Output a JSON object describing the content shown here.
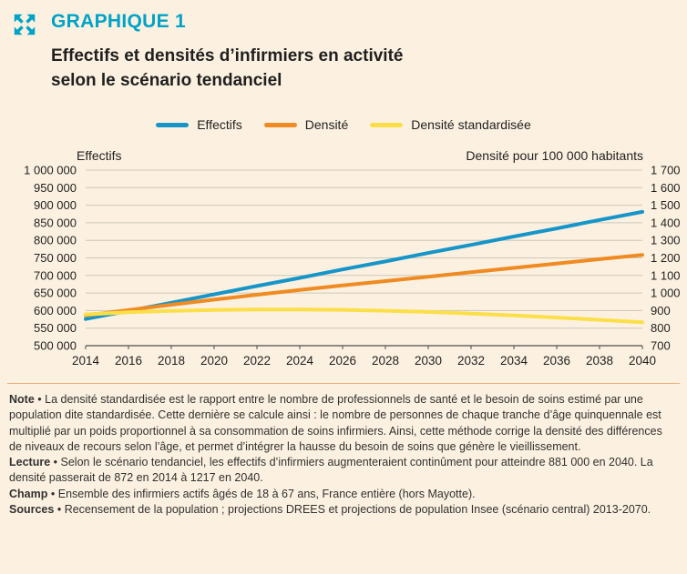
{
  "header": {
    "kicker": "GRAPHIQUE 1",
    "title_lines": [
      "Effectifs et densités d’infirmiers en activité",
      "selon le scénario tendanciel"
    ]
  },
  "colors": {
    "accent_teal": "#00a3c7",
    "background": "#fcf1e0",
    "grid": "#ccc7ba",
    "axis": "#4d4d4d",
    "separator": "#ecaf72",
    "text": "#2a2a2a"
  },
  "chart_data": {
    "type": "line",
    "title": "Effectifs et densités d’infirmiers en activité selon le scénario tendanciel",
    "x": [
      2014,
      2016,
      2018,
      2020,
      2022,
      2024,
      2026,
      2028,
      2030,
      2032,
      2034,
      2036,
      2038,
      2040
    ],
    "x_tick_labels": [
      "2014",
      "2016",
      "2018",
      "2020",
      "2022",
      "2024",
      "2026",
      "2028",
      "2030",
      "2032",
      "2034",
      "2036",
      "2038",
      "2040"
    ],
    "grid": true,
    "legend_position": "top",
    "left_axis": {
      "title": "Effectifs",
      "min": 500000,
      "max": 1000000,
      "step": 50000,
      "tick_labels": [
        "1 000 000",
        "950 000",
        "900 000",
        "850 000",
        "800 000",
        "750 000",
        "700 000",
        "650 000",
        "600 000",
        "550 000",
        "500 000"
      ]
    },
    "right_axis": {
      "title": "Densité pour 100 000 habitants",
      "min": 700,
      "max": 1700,
      "step": 100,
      "tick_labels": [
        "1 700",
        "1 600",
        "1 500",
        "1 400",
        "1 300",
        "1 200",
        "1 100",
        "1 000",
        "900",
        "800",
        "700"
      ]
    },
    "series": [
      {
        "name": "Effectifs",
        "key": "effectifs",
        "axis": "left",
        "color": "#1795c9",
        "values": [
          576000,
          599000,
          622000,
          646000,
          670000,
          693000,
          717000,
          740000,
          764000,
          787000,
          811000,
          834000,
          858000,
          881000
        ]
      },
      {
        "name": "Densité",
        "key": "densite",
        "axis": "right",
        "color": "#ef8b22",
        "values": [
          872,
          903,
          933,
          962,
          990,
          1017,
          1043,
          1068,
          1093,
          1118,
          1143,
          1168,
          1193,
          1217
        ]
      },
      {
        "name": "Densité standardisée",
        "key": "densite-standardisee",
        "axis": "right",
        "color": "#fbdf49",
        "values": [
          878,
          890,
          898,
          903,
          906,
          906,
          904,
          899,
          892,
          883,
          872,
          860,
          847,
          833
        ]
      }
    ]
  },
  "notes": {
    "bullet": "•",
    "items": [
      {
        "label": "Note",
        "text": "La densité standardisée est le rapport entre le nombre de professionnels de santé et le besoin de soins estimé par une population dite standardisée. Cette dernière se calcule ainsi : le nombre de personnes de chaque tranche d’âge quinquennale est multiplié par un poids proportionnel à sa consommation de soins infirmiers. Ainsi, cette méthode corrige la densité des différences de niveaux de recours selon l’âge, et permet d’intégrer la hausse du besoin de soins que génère le vieillissement."
      },
      {
        "label": "Lecture",
        "text": "Selon le scénario tendanciel, les effectifs d’infirmiers augmenteraient continûment pour atteindre 881 000 en 2040. La densité passerait de 872 en 2014 à 1217 en 2040."
      },
      {
        "label": "Champ",
        "text": "Ensemble des infirmiers actifs âgés de 18 à 67 ans, France entière (hors Mayotte)."
      },
      {
        "label": "Sources",
        "text": "Recensement de la population ; projections DREES et projections de population Insee (scénario central) 2013-2070."
      }
    ]
  }
}
